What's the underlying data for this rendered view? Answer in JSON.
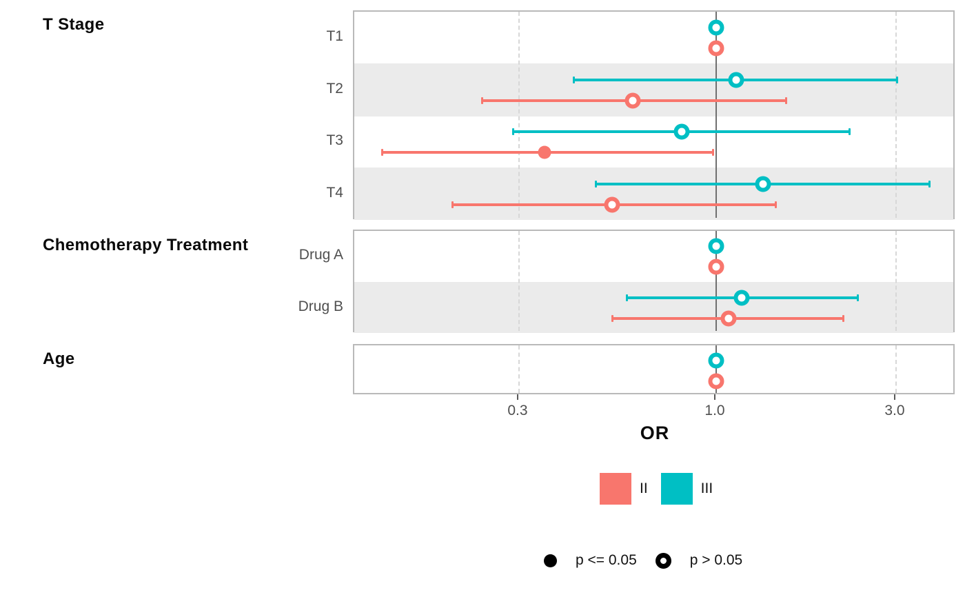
{
  "chart_data": {
    "type": "forest_plot_dot_ci",
    "xlabel": "OR",
    "x_scale": "log10",
    "x_axis_range": [
      0.11,
      4.33
    ],
    "x_ticks": [
      {
        "value": 0.3,
        "label": "0.3"
      },
      {
        "value": 1.0,
        "label": "1.0"
      },
      {
        "value": 3.0,
        "label": "3.0"
      }
    ],
    "reference_line": 1.0,
    "grid": "dashed-at-ticks",
    "series": [
      {
        "name": "II",
        "color": "#F8766D"
      },
      {
        "name": "III",
        "color": "#00BFC4"
      }
    ],
    "panels": [
      {
        "header": "T Stage",
        "rows": [
          {
            "label": "T1",
            "shaded": false,
            "points": [
              {
                "group": "III",
                "or": 1.0,
                "low": null,
                "high": null,
                "significant": false,
                "reference": true
              },
              {
                "group": "II",
                "or": 1.0,
                "low": null,
                "high": null,
                "significant": false,
                "reference": true
              }
            ]
          },
          {
            "label": "T2",
            "shaded": true,
            "points": [
              {
                "group": "III",
                "or": 1.13,
                "low": 0.42,
                "high": 3.02,
                "significant": false
              },
              {
                "group": "II",
                "or": 0.6,
                "low": 0.24,
                "high": 1.53,
                "significant": false
              }
            ]
          },
          {
            "label": "T3",
            "shaded": false,
            "points": [
              {
                "group": "III",
                "or": 0.81,
                "low": 0.29,
                "high": 2.26,
                "significant": false
              },
              {
                "group": "II",
                "or": 0.35,
                "low": 0.13,
                "high": 0.98,
                "significant": true
              }
            ]
          },
          {
            "label": "T4",
            "shaded": true,
            "points": [
              {
                "group": "III",
                "or": 1.33,
                "low": 0.48,
                "high": 3.68,
                "significant": false
              },
              {
                "group": "II",
                "or": 0.53,
                "low": 0.2,
                "high": 1.44,
                "significant": false
              }
            ]
          }
        ]
      },
      {
        "header": "Chemotherapy Treatment",
        "rows": [
          {
            "label": "Drug A",
            "shaded": false,
            "points": [
              {
                "group": "III",
                "or": 1.0,
                "low": null,
                "high": null,
                "significant": false,
                "reference": true
              },
              {
                "group": "II",
                "or": 1.0,
                "low": null,
                "high": null,
                "significant": false,
                "reference": true
              }
            ]
          },
          {
            "label": "Drug B",
            "shaded": true,
            "points": [
              {
                "group": "III",
                "or": 1.17,
                "low": 0.58,
                "high": 2.38,
                "significant": false
              },
              {
                "group": "II",
                "or": 1.08,
                "low": 0.53,
                "high": 2.17,
                "significant": false
              }
            ]
          }
        ]
      },
      {
        "header": "Age",
        "rows": [
          {
            "label": "",
            "shaded": false,
            "points": [
              {
                "group": "III",
                "or": 1.0,
                "low": null,
                "high": null,
                "significant": false
              },
              {
                "group": "II",
                "or": 1.0,
                "low": null,
                "high": null,
                "significant": false
              }
            ]
          }
        ]
      }
    ],
    "legend": {
      "position": "bottom",
      "groups": [
        {
          "label": "II",
          "color": "#F8766D"
        },
        {
          "label": "III",
          "color": "#00BFC4"
        }
      ],
      "significance": [
        {
          "label": "p <= 0.05",
          "marker": "filled"
        },
        {
          "label": "p > 0.05",
          "marker": "open"
        }
      ]
    }
  }
}
